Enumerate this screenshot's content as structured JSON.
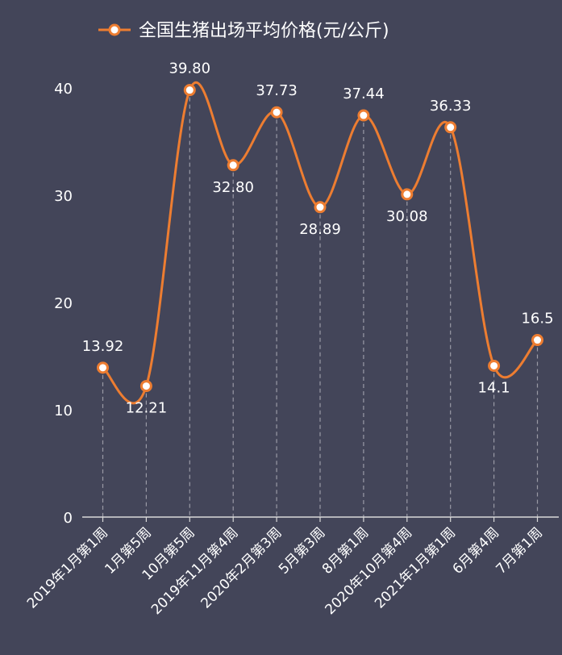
{
  "chart_data": {
    "type": "line",
    "title": "",
    "legend": {
      "label": "全国生猪出场平均价格(元/公斤)",
      "position": "top-center"
    },
    "categories": [
      "2019年1月第1周",
      "1月第5周",
      "10月第5周",
      "2019年11月第4周",
      "2020年2月第3周",
      "5月第3周",
      "8月第1周",
      "2020年10月第4周",
      "2021年1月第1周",
      "6月第4周",
      "7月第1周"
    ],
    "series": [
      {
        "name": "全国生猪出场平均价格(元/公斤)",
        "values": [
          13.92,
          12.21,
          39.8,
          32.8,
          37.73,
          28.89,
          37.44,
          30.08,
          36.33,
          14.1,
          16.5
        ],
        "labels": [
          "13.92",
          "12.21",
          "39.80",
          "32.80",
          "37.73",
          "28.89",
          "37.44",
          "30.08",
          "36.33",
          "14.1",
          "16.5"
        ],
        "label_position": [
          "above",
          "below",
          "above",
          "below",
          "above",
          "below",
          "above",
          "below",
          "above",
          "below",
          "above"
        ]
      }
    ],
    "yticks": [
      0,
      10,
      20,
      30,
      40
    ],
    "ylim": [
      0,
      40
    ],
    "xlabel": "",
    "ylabel": "",
    "smooth": true,
    "grid": false,
    "drop_lines": true,
    "colors": {
      "line": "#ED7D31",
      "background": "#434559",
      "text": "#ffffff",
      "axis": "#d9d9d9",
      "drop_line": "#9a9aa6"
    }
  }
}
